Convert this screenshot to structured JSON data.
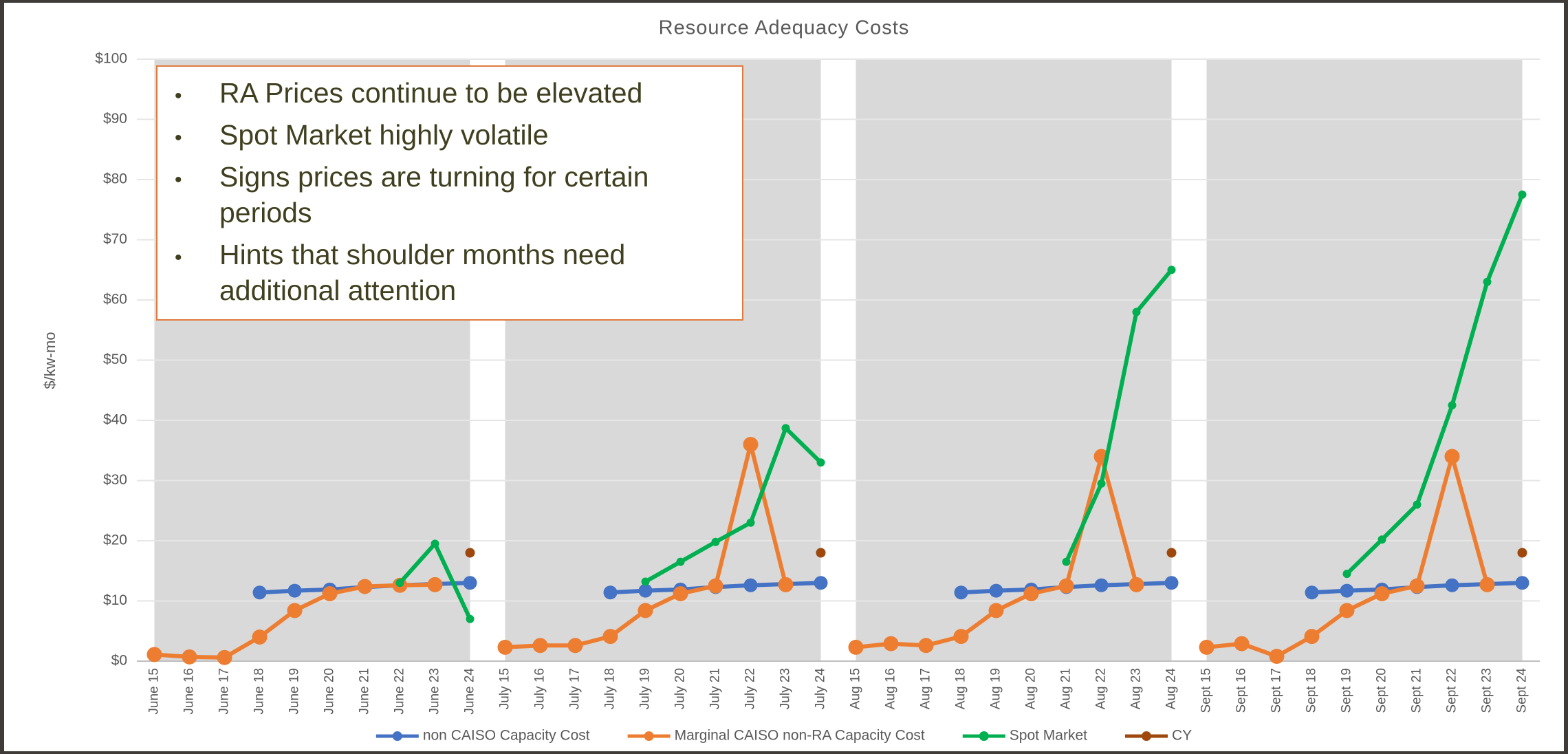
{
  "chart_data": {
    "type": "line",
    "title": "Resource Adequacy Costs",
    "y_label": "$/kw-mo",
    "categories": [
      "June 15",
      "June 16",
      "June 17",
      "June 18",
      "June 19",
      "June 20",
      "June 21",
      "June 22",
      "June 23",
      "June 24",
      "July 15",
      "July 16",
      "July 17",
      "July 18",
      "July 19",
      "July 20",
      "July 21",
      "July 22",
      "July 23",
      "July 24",
      "Aug 15",
      "Aug 16",
      "Aug 17",
      "Aug 18",
      "Aug 19",
      "Aug 20",
      "Aug 21",
      "Aug 22",
      "Aug 23",
      "Aug 24",
      "Sept 15",
      "Sept 16",
      "Sept 17",
      "Sept 18",
      "Sept 19",
      "Sept 20",
      "Sept 21",
      "Sept 22",
      "Sept 23",
      "Sept 24"
    ],
    "series": [
      {
        "name": "non CAISO Capacity Cost",
        "color": "#4472c4",
        "values": [
          null,
          null,
          null,
          11.4,
          11.7,
          11.9,
          12.3,
          12.6,
          12.8,
          13.0,
          null,
          null,
          null,
          11.4,
          11.7,
          11.9,
          12.3,
          12.6,
          12.8,
          13.0,
          null,
          null,
          null,
          11.4,
          11.7,
          11.9,
          12.3,
          12.6,
          12.8,
          13.0,
          null,
          null,
          null,
          11.4,
          11.7,
          11.9,
          12.3,
          12.6,
          12.8,
          13.0
        ]
      },
      {
        "name": "Marginal CAISO non-RA Capacity Cost",
        "color": "#ed7d31",
        "values": [
          1.1,
          0.7,
          0.6,
          4.0,
          8.4,
          11.2,
          12.4,
          12.6,
          12.7,
          null,
          2.3,
          2.6,
          2.6,
          4.1,
          8.4,
          11.2,
          12.5,
          36.0,
          12.7,
          null,
          2.3,
          2.9,
          2.6,
          4.1,
          8.4,
          11.2,
          12.5,
          34.0,
          12.7,
          null,
          2.3,
          2.9,
          0.8,
          4.1,
          8.4,
          11.2,
          12.5,
          34.0,
          12.7,
          null
        ]
      },
      {
        "name": "Spot Market",
        "color": "#00b050",
        "values": [
          null,
          null,
          null,
          null,
          null,
          null,
          null,
          13.0,
          19.5,
          7.0,
          null,
          null,
          null,
          null,
          13.2,
          16.5,
          19.8,
          23.0,
          38.7,
          33.0,
          null,
          null,
          null,
          null,
          null,
          null,
          16.5,
          29.5,
          58.0,
          65.0,
          null,
          null,
          null,
          null,
          14.5,
          20.2,
          26.0,
          42.5,
          63.0,
          77.5
        ]
      },
      {
        "name": "CY",
        "color": "#9e480e",
        "values": [
          null,
          null,
          null,
          null,
          null,
          null,
          null,
          null,
          null,
          18.0,
          null,
          null,
          null,
          null,
          null,
          null,
          null,
          null,
          null,
          18.0,
          null,
          null,
          null,
          null,
          null,
          null,
          null,
          null,
          null,
          18.0,
          null,
          null,
          null,
          null,
          null,
          null,
          null,
          null,
          null,
          18.0
        ]
      }
    ],
    "ylim": [
      0,
      100
    ],
    "yticks": [
      {
        "value": 0,
        "label": "$0"
      },
      {
        "value": 10,
        "label": "$10"
      },
      {
        "value": 20,
        "label": "$20"
      },
      {
        "value": 30,
        "label": "$30"
      },
      {
        "value": 40,
        "label": "$40"
      },
      {
        "value": 50,
        "label": "$50"
      },
      {
        "value": 60,
        "label": "$60"
      },
      {
        "value": 70,
        "label": "$70"
      },
      {
        "value": 80,
        "label": "$80"
      },
      {
        "value": 90,
        "label": "$90"
      },
      {
        "value": 100,
        "label": "$100"
      }
    ],
    "grid": true,
    "legend": "bottom",
    "annotations": [
      "RA Prices continue to be elevated",
      "Spot Market highly volatile",
      "Signs prices are turning for certain",
      "periods",
      "Hints that shoulder months need",
      "additional attention"
    ]
  }
}
